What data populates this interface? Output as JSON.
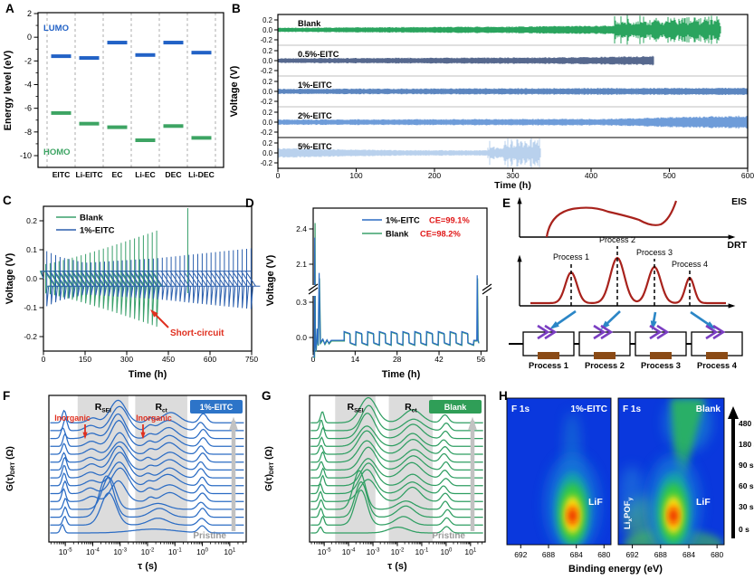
{
  "letters": [
    "A",
    "B",
    "C",
    "D",
    "E",
    "F",
    "G",
    "H"
  ],
  "chart_data": [
    {
      "panel": "A",
      "type": "scatter",
      "ylabel": "Energy level (eV)",
      "yticks": [
        2,
        0,
        -2,
        -4,
        -6,
        -8,
        -10
      ],
      "ylim": [
        2,
        -10.8
      ],
      "categories": [
        "EITC",
        "Li-EITC",
        "EC",
        "Li-EC",
        "DEC",
        "Li-DEC"
      ],
      "lumo_label": "LUMO",
      "homo_label": "HOMO",
      "lumo_color": "#2262c6",
      "homo_color": "#3da463",
      "lumo": [
        -1.6,
        -1.75,
        -0.45,
        -1.5,
        -0.45,
        -1.3
      ],
      "homo": [
        -6.4,
        -7.3,
        -7.6,
        -8.7,
        -7.5,
        -8.5
      ]
    },
    {
      "panel": "B",
      "type": "line",
      "ylabel": "Voltage (V)",
      "xlabel": "Time (h)",
      "xticks": [
        0,
        100,
        200,
        300,
        400,
        500,
        600
      ],
      "xlim": [
        0,
        600
      ],
      "row_yticks": [
        "0.2",
        "0.0",
        "-0.2"
      ],
      "series": [
        {
          "label": "Blank",
          "color": "#2aa45e",
          "end": 565,
          "envelope": [
            [
              0,
              0.045
            ],
            [
              300,
              0.07
            ],
            [
              430,
              0.09
            ],
            [
              565,
              0.1
            ]
          ],
          "fail": {
            "start": 430,
            "end": 565,
            "amp": 0.2,
            "spike_p": 0.12,
            "spike_amp": 0.3
          }
        },
        {
          "label": "0.5%-EITC",
          "color": "#56688e",
          "end": 480,
          "envelope": [
            [
              0,
              0.05
            ],
            [
              380,
              0.07
            ],
            [
              480,
              0.095
            ]
          ],
          "fail": null
        },
        {
          "label": "1%-EITC",
          "color": "#5c86c0",
          "end": 600,
          "envelope": [
            [
              0,
              0.055
            ],
            [
              600,
              0.075
            ]
          ],
          "fail": null
        },
        {
          "label": "2%-EITC",
          "color": "#6e9cd9",
          "end": 600,
          "envelope": [
            [
              0,
              0.055
            ],
            [
              420,
              0.07
            ],
            [
              520,
              0.11
            ],
            [
              600,
              0.135
            ]
          ],
          "fail": null
        },
        {
          "label": "5%-EITC",
          "color": "#b9d1ed",
          "end": 335,
          "envelope": [
            [
              0,
              0.1
            ],
            [
              150,
              0.06
            ],
            [
              265,
              0.055
            ],
            [
              335,
              0.12
            ]
          ],
          "fail": {
            "start": 268,
            "end": 335,
            "amp": 0.18,
            "spike_p": 0.2,
            "spike_amp": 0.32
          }
        }
      ]
    },
    {
      "panel": "C",
      "type": "line",
      "ylabel": "Voltage (V)",
      "xlabel": "Time (h)",
      "xticks": [
        0,
        150,
        300,
        450,
        600,
        750
      ],
      "yticks": [
        "0.2",
        "0.1",
        "0.0",
        "-0.1",
        "-0.2"
      ],
      "annotation": "Short-circuit",
      "annotation_color": "#e03020",
      "legend": [
        {
          "label": "Blank",
          "color": "#3aa06b"
        },
        {
          "label": "1%-EITC",
          "color": "#2b5fad"
        }
      ],
      "green": {
        "period": 16,
        "end": 420,
        "amp0": 0.05,
        "amp1": 0.17,
        "stray_t": 520,
        "stray_amp": 0.26
      },
      "blue": {
        "period": 16,
        "end": 748,
        "envelope": [
          [
            0,
            0.1
          ],
          [
            60,
            0.075
          ],
          [
            150,
            0.055
          ],
          [
            400,
            0.07
          ],
          [
            750,
            0.105
          ]
        ]
      }
    },
    {
      "panel": "D",
      "type": "line",
      "ylabel": "Voltage (V)",
      "xlabel": "Time (h)",
      "xticks": [
        0,
        14,
        28,
        42,
        56
      ],
      "yticks": [
        "2.4",
        "2.1",
        "0.3",
        "0.0"
      ],
      "legend": [
        {
          "label": "1%-EITC",
          "ce": "CE=99.1%",
          "color": "#2b6cc4"
        },
        {
          "label": "Blank",
          "ce": "CE=98.2%",
          "color": "#3aa06b"
        }
      ],
      "ce_color": "#e01818",
      "spikes_green": [
        2.45,
        1.98,
        1.98
      ],
      "spikes_blue": [
        2.32,
        2.02,
        2.0
      ],
      "cycle": {
        "start": 10.3,
        "period": 3.93,
        "n": 11,
        "high": 0.045,
        "high_end": 0.028,
        "low": -0.05,
        "low_end": -0.068
      },
      "final_spike_t": 54.75
    },
    {
      "panel": "E",
      "type": "diagram",
      "eis_label": "EIS",
      "drt_label": "DRT",
      "curve_color": "#a8221c",
      "peak_labels": [
        "Process 1",
        "Process 2",
        "Process 3",
        "Process 4"
      ],
      "peak_centers": [
        83,
        134,
        175,
        214
      ],
      "peak_heights": [
        34,
        50,
        40,
        28
      ],
      "peak_sigmas": [
        9,
        11,
        10,
        7
      ],
      "circuit_labels": [
        "Process 1",
        "Process 2",
        "Process 3",
        "Process 4"
      ],
      "chevron_color": "#7b3ec2",
      "resistor_color": "#8a4a15",
      "arrow_color": "#2b86c6"
    },
    {
      "panel": "F",
      "type": "line",
      "badge": "1%-EITC",
      "badge_color": "#2d74c8",
      "curve_color": "#2b6cc4",
      "ylabel_main": "G(τ)",
      "ylabel_sub": "DRT",
      "ylabel_unit": " (Ω)",
      "xlabel": "τ (s)",
      "xtick_exps": [
        -5,
        -4,
        -3,
        -2,
        -1,
        0,
        1
      ],
      "r1": "R",
      "r1_sub": "SEI",
      "r2": "R",
      "r2_sub": "ct",
      "inorganic": "Inorganic",
      "pristine": "Pristine",
      "n_curves": 15,
      "bands": [
        [
          -4.55,
          -2.7
        ],
        [
          -2.45,
          -0.55
        ]
      ],
      "peaks_pristine": [
        [
          -5.05,
          0.1,
          0.3
        ],
        [
          -1.8,
          1.1,
          0.16
        ],
        [
          0.0,
          0.2,
          0.28
        ]
      ],
      "peaks_early": [
        [
          -5.05,
          0.1,
          0.4
        ],
        [
          -3.45,
          0.38,
          1.45
        ],
        [
          -1.6,
          0.5,
          0.28
        ],
        [
          0.0,
          0.18,
          0.3
        ]
      ],
      "peaks_late": [
        [
          -5.05,
          0.1,
          0.45
        ],
        [
          -4.05,
          0.28,
          0.22
        ],
        [
          -3.05,
          0.4,
          0.95
        ],
        [
          -1.95,
          0.18,
          0.18
        ],
        [
          -1.2,
          0.45,
          0.42
        ],
        [
          -0.02,
          0.18,
          0.34
        ]
      ]
    },
    {
      "panel": "G",
      "type": "line",
      "badge": "Blank",
      "badge_color": "#2f9e57",
      "curve_color": "#2f9e62",
      "ylabel_main": "G(τ)",
      "ylabel_sub": "DRT",
      "ylabel_unit": " (Ω)",
      "xlabel": "τ (s)",
      "xtick_exps": [
        -5,
        -4,
        -3,
        -2,
        -1,
        0,
        1
      ],
      "r1": "R",
      "r1_sub": "SEI",
      "r2": "R",
      "r2_sub": "ct",
      "pristine": "Pristine",
      "n_curves": 15,
      "bands": [
        [
          -4.55,
          -2.9
        ],
        [
          -2.35,
          -0.55
        ]
      ],
      "peaks_pristine": [
        [
          -5.1,
          0.1,
          0.25
        ],
        [
          -2.0,
          0.5,
          0.25
        ],
        [
          0.0,
          0.2,
          0.26
        ]
      ],
      "peaks_early": [
        [
          -5.1,
          0.1,
          0.35
        ],
        [
          -3.5,
          0.36,
          1.4
        ],
        [
          -1.7,
          0.5,
          0.35
        ],
        [
          0.0,
          0.18,
          0.3
        ]
      ],
      "peaks_late": [
        [
          -5.1,
          0.1,
          0.4
        ],
        [
          -3.2,
          0.45,
          0.9
        ],
        [
          -1.35,
          0.5,
          0.55
        ],
        [
          -0.05,
          0.2,
          0.3
        ]
      ]
    },
    {
      "panel": "H",
      "type": "heatmap",
      "xps": "F 1s",
      "left_title": "1%-EITC",
      "right_title": "Blank",
      "lif": "LiF",
      "lixpofy": [
        "Li",
        "x",
        "POF",
        "y"
      ],
      "xticks": [
        692,
        688,
        684,
        680
      ],
      "xlabel": "Binding energy (eV)",
      "left_peak_ev": 684.6,
      "right_peak_ev": 685.4,
      "times": [
        "480 s",
        "180 s",
        "90 s",
        "60 s",
        "30 s",
        "0 s"
      ]
    }
  ]
}
